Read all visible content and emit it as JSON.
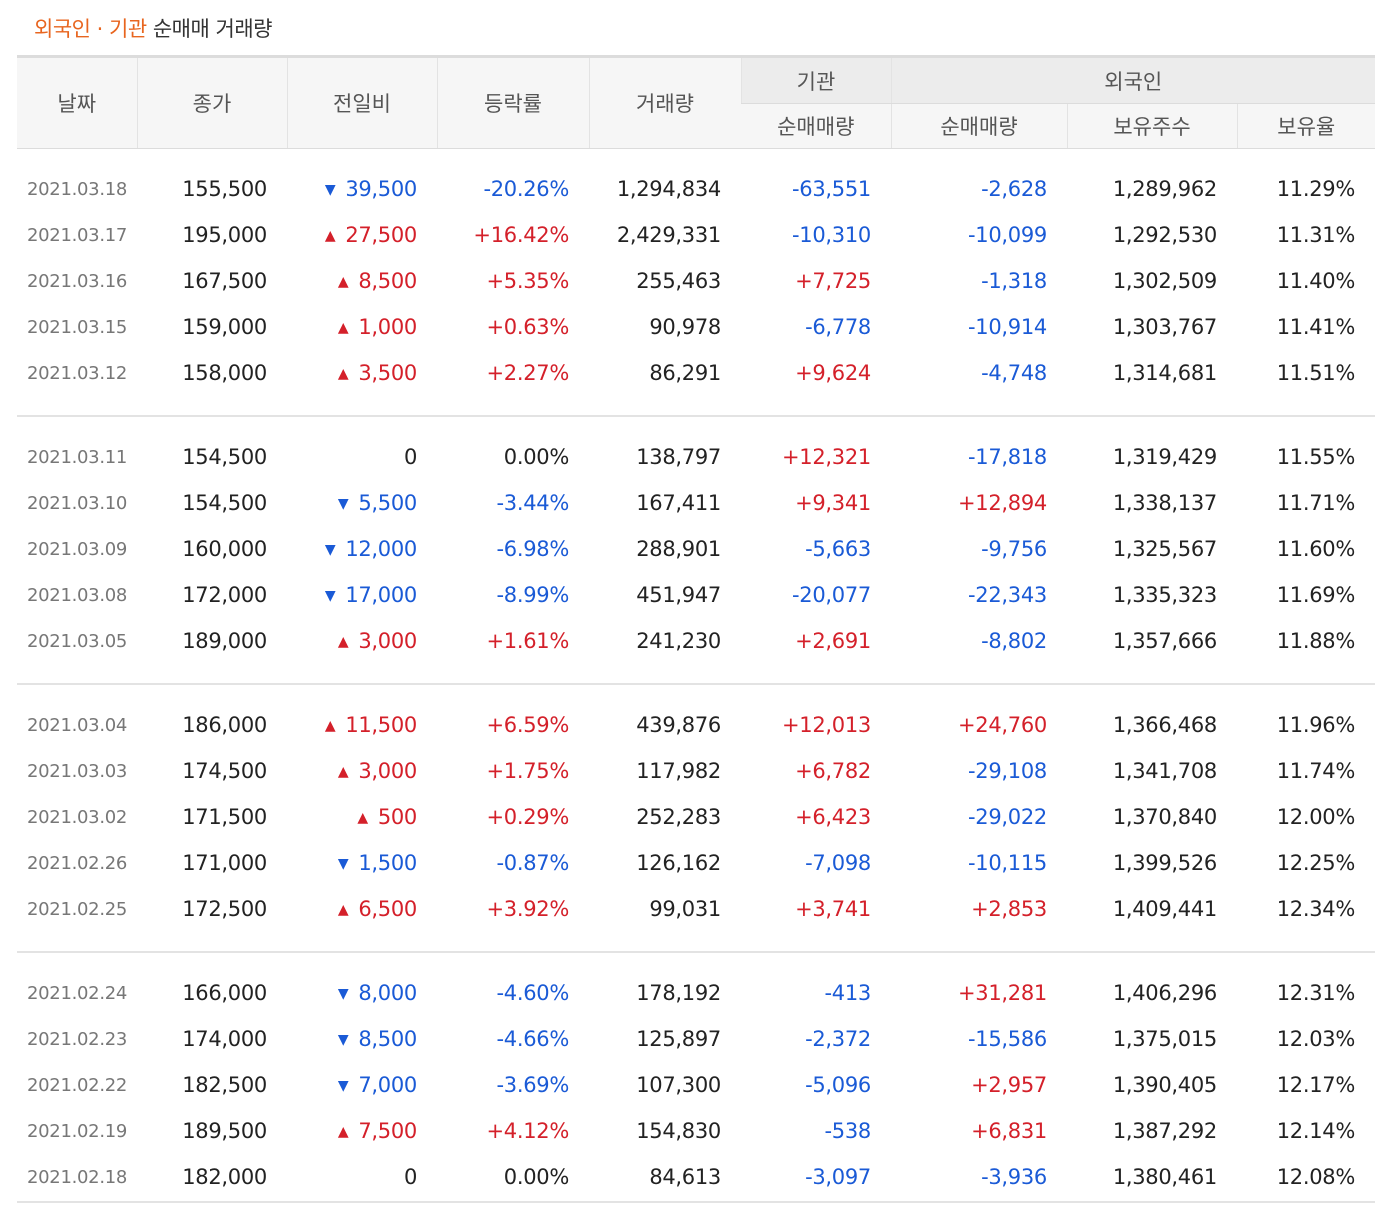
{
  "title": {
    "foreign": "외국인",
    "dot": "·",
    "inst": "기관",
    "rest": "순매매 거래량"
  },
  "headers": {
    "date": "날짜",
    "close": "종가",
    "change": "전일비",
    "rate": "등락률",
    "volume": "거래량",
    "inst_group": "기관",
    "foreign_group": "외국인",
    "inst_net": "순매매량",
    "foreign_net": "순매매량",
    "foreign_hold": "보유주수",
    "foreign_ratio": "보유율"
  },
  "colors": {
    "up": "#d4202a",
    "down": "#1a5ad6",
    "accent": "#e8651f"
  },
  "groups": [
    {
      "rows": [
        {
          "date": "2021.03.18",
          "close": "155,500",
          "dir": "down",
          "change": "39,500",
          "rate": "-20.26%",
          "volume": "1,294,834",
          "inst": "-63,551",
          "foreign": "-2,628",
          "hold": "1,289,962",
          "ratio": "11.29%"
        },
        {
          "date": "2021.03.17",
          "close": "195,000",
          "dir": "up",
          "change": "27,500",
          "rate": "+16.42%",
          "volume": "2,429,331",
          "inst": "-10,310",
          "foreign": "-10,099",
          "hold": "1,292,530",
          "ratio": "11.31%"
        },
        {
          "date": "2021.03.16",
          "close": "167,500",
          "dir": "up",
          "change": "8,500",
          "rate": "+5.35%",
          "volume": "255,463",
          "inst": "+7,725",
          "foreign": "-1,318",
          "hold": "1,302,509",
          "ratio": "11.40%"
        },
        {
          "date": "2021.03.15",
          "close": "159,000",
          "dir": "up",
          "change": "1,000",
          "rate": "+0.63%",
          "volume": "90,978",
          "inst": "-6,778",
          "foreign": "-10,914",
          "hold": "1,303,767",
          "ratio": "11.41%"
        },
        {
          "date": "2021.03.12",
          "close": "158,000",
          "dir": "up",
          "change": "3,500",
          "rate": "+2.27%",
          "volume": "86,291",
          "inst": "+9,624",
          "foreign": "-4,748",
          "hold": "1,314,681",
          "ratio": "11.51%"
        }
      ]
    },
    {
      "rows": [
        {
          "date": "2021.03.11",
          "close": "154,500",
          "dir": "flat",
          "change": "0",
          "rate": "0.00%",
          "volume": "138,797",
          "inst": "+12,321",
          "foreign": "-17,818",
          "hold": "1,319,429",
          "ratio": "11.55%"
        },
        {
          "date": "2021.03.10",
          "close": "154,500",
          "dir": "down",
          "change": "5,500",
          "rate": "-3.44%",
          "volume": "167,411",
          "inst": "+9,341",
          "foreign": "+12,894",
          "hold": "1,338,137",
          "ratio": "11.71%"
        },
        {
          "date": "2021.03.09",
          "close": "160,000",
          "dir": "down",
          "change": "12,000",
          "rate": "-6.98%",
          "volume": "288,901",
          "inst": "-5,663",
          "foreign": "-9,756",
          "hold": "1,325,567",
          "ratio": "11.60%"
        },
        {
          "date": "2021.03.08",
          "close": "172,000",
          "dir": "down",
          "change": "17,000",
          "rate": "-8.99%",
          "volume": "451,947",
          "inst": "-20,077",
          "foreign": "-22,343",
          "hold": "1,335,323",
          "ratio": "11.69%"
        },
        {
          "date": "2021.03.05",
          "close": "189,000",
          "dir": "up",
          "change": "3,000",
          "rate": "+1.61%",
          "volume": "241,230",
          "inst": "+2,691",
          "foreign": "-8,802",
          "hold": "1,357,666",
          "ratio": "11.88%"
        }
      ]
    },
    {
      "rows": [
        {
          "date": "2021.03.04",
          "close": "186,000",
          "dir": "up",
          "change": "11,500",
          "rate": "+6.59%",
          "volume": "439,876",
          "inst": "+12,013",
          "foreign": "+24,760",
          "hold": "1,366,468",
          "ratio": "11.96%"
        },
        {
          "date": "2021.03.03",
          "close": "174,500",
          "dir": "up",
          "change": "3,000",
          "rate": "+1.75%",
          "volume": "117,982",
          "inst": "+6,782",
          "foreign": "-29,108",
          "hold": "1,341,708",
          "ratio": "11.74%"
        },
        {
          "date": "2021.03.02",
          "close": "171,500",
          "dir": "up",
          "change": "500",
          "rate": "+0.29%",
          "volume": "252,283",
          "inst": "+6,423",
          "foreign": "-29,022",
          "hold": "1,370,840",
          "ratio": "12.00%"
        },
        {
          "date": "2021.02.26",
          "close": "171,000",
          "dir": "down",
          "change": "1,500",
          "rate": "-0.87%",
          "volume": "126,162",
          "inst": "-7,098",
          "foreign": "-10,115",
          "hold": "1,399,526",
          "ratio": "12.25%"
        },
        {
          "date": "2021.02.25",
          "close": "172,500",
          "dir": "up",
          "change": "6,500",
          "rate": "+3.92%",
          "volume": "99,031",
          "inst": "+3,741",
          "foreign": "+2,853",
          "hold": "1,409,441",
          "ratio": "12.34%"
        }
      ]
    },
    {
      "rows": [
        {
          "date": "2021.02.24",
          "close": "166,000",
          "dir": "down",
          "change": "8,000",
          "rate": "-4.60%",
          "volume": "178,192",
          "inst": "-413",
          "foreign": "+31,281",
          "hold": "1,406,296",
          "ratio": "12.31%"
        },
        {
          "date": "2021.02.23",
          "close": "174,000",
          "dir": "down",
          "change": "8,500",
          "rate": "-4.66%",
          "volume": "125,897",
          "inst": "-2,372",
          "foreign": "-15,586",
          "hold": "1,375,015",
          "ratio": "12.03%"
        },
        {
          "date": "2021.02.22",
          "close": "182,500",
          "dir": "down",
          "change": "7,000",
          "rate": "-3.69%",
          "volume": "107,300",
          "inst": "-5,096",
          "foreign": "+2,957",
          "hold": "1,390,405",
          "ratio": "12.17%"
        },
        {
          "date": "2021.02.19",
          "close": "189,500",
          "dir": "up",
          "change": "7,500",
          "rate": "+4.12%",
          "volume": "154,830",
          "inst": "-538",
          "foreign": "+6,831",
          "hold": "1,387,292",
          "ratio": "12.14%"
        },
        {
          "date": "2021.02.18",
          "close": "182,000",
          "dir": "flat",
          "change": "0",
          "rate": "0.00%",
          "volume": "84,613",
          "inst": "-3,097",
          "foreign": "-3,936",
          "hold": "1,380,461",
          "ratio": "12.08%"
        }
      ]
    }
  ]
}
